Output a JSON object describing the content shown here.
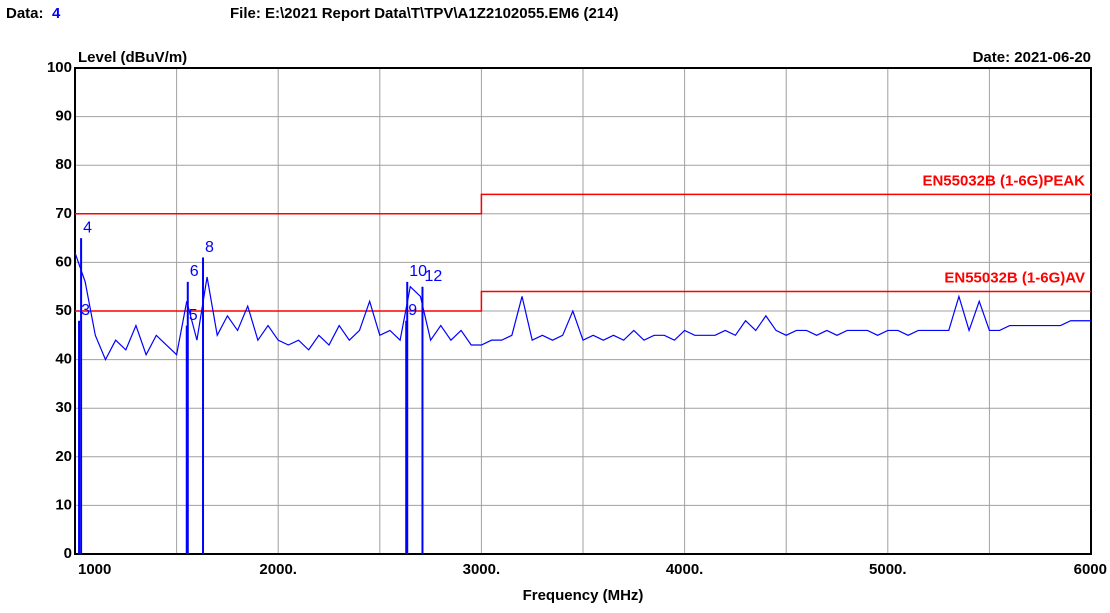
{
  "chart_data": {
    "type": "line",
    "data_label": "Data:",
    "data_number": "4",
    "file": "File: E:\\2021 Report Data\\T\\TPV\\A1Z2102055.EM6  (214)",
    "date": "Date: 2021-06-20",
    "ylabel": "Level (dBuV/m)",
    "xlabel": "Frequency (MHz)",
    "xlim": [
      1000,
      6000
    ],
    "ylim": [
      0,
      100
    ],
    "xticks": [
      {
        "value": 1000,
        "label": "1000"
      },
      {
        "value": 2000,
        "label": "2000."
      },
      {
        "value": 3000,
        "label": "3000."
      },
      {
        "value": 4000,
        "label": "4000."
      },
      {
        "value": 5000,
        "label": "5000."
      },
      {
        "value": 6000,
        "label": "6000"
      }
    ],
    "xgrid": [
      1500,
      2500,
      3500,
      4500,
      5500
    ],
    "yticks": [
      0,
      10,
      20,
      30,
      40,
      50,
      60,
      70,
      80,
      90,
      100
    ],
    "grid": true,
    "series": [
      {
        "name": "Data",
        "color": "#0000ff",
        "x": [
          1000,
          1050,
          1100,
          1150,
          1200,
          1250,
          1300,
          1350,
          1400,
          1450,
          1500,
          1550,
          1600,
          1650,
          1700,
          1750,
          1800,
          1850,
          1900,
          1950,
          2000,
          2050,
          2100,
          2150,
          2200,
          2250,
          2300,
          2350,
          2400,
          2450,
          2500,
          2550,
          2600,
          2650,
          2700,
          2750,
          2800,
          2850,
          2900,
          2950,
          3000,
          3050,
          3100,
          3150,
          3200,
          3250,
          3300,
          3350,
          3400,
          3450,
          3500,
          3550,
          3600,
          3650,
          3700,
          3750,
          3800,
          3850,
          3900,
          3950,
          4000,
          4050,
          4100,
          4150,
          4200,
          4250,
          4300,
          4350,
          4400,
          4450,
          4500,
          4550,
          4600,
          4650,
          4700,
          4750,
          4800,
          4850,
          4900,
          4950,
          5000,
          5050,
          5100,
          5150,
          5200,
          5250,
          5300,
          5350,
          5400,
          5450,
          5500,
          5550,
          5600,
          5650,
          5700,
          5750,
          5800,
          5850,
          5900,
          5950,
          6000
        ],
        "values": [
          62,
          56,
          45,
          40,
          44,
          42,
          47,
          41,
          45,
          43,
          41,
          52,
          44,
          57,
          45,
          49,
          46,
          51,
          44,
          47,
          44,
          43,
          44,
          42,
          45,
          43,
          47,
          44,
          46,
          52,
          45,
          46,
          44,
          55,
          53,
          44,
          47,
          44,
          46,
          43,
          43,
          44,
          44,
          45,
          53,
          44,
          45,
          44,
          45,
          50,
          44,
          45,
          44,
          45,
          44,
          46,
          44,
          45,
          45,
          44,
          46,
          45,
          45,
          45,
          46,
          45,
          48,
          46,
          49,
          46,
          45,
          46,
          46,
          45,
          46,
          45,
          46,
          46,
          46,
          45,
          46,
          46,
          45,
          46,
          46,
          46,
          46,
          53,
          46,
          52,
          46,
          46,
          47,
          47,
          47,
          47,
          47,
          47,
          48,
          48,
          48
        ]
      }
    ],
    "limits": [
      {
        "name": "EN55032B (1-6G)PEAK",
        "color": "#ff0000",
        "x": [
          1000,
          3000,
          3000,
          6000
        ],
        "values": [
          70,
          70,
          74,
          74
        ]
      },
      {
        "name": "EN55032B (1-6G)AV",
        "color": "#ff0000",
        "x": [
          1000,
          3000,
          3000,
          6000
        ],
        "values": [
          50,
          50,
          54,
          54
        ]
      }
    ],
    "markers": [
      {
        "label": "3",
        "x": 1020,
        "value": 48
      },
      {
        "label": "4",
        "x": 1030,
        "value": 65
      },
      {
        "label": "5",
        "x": 1550,
        "value": 47
      },
      {
        "label": "6",
        "x": 1555,
        "value": 56
      },
      {
        "label": "8",
        "x": 1630,
        "value": 61
      },
      {
        "label": "9",
        "x": 2630,
        "value": 48
      },
      {
        "label": "10",
        "x": 2635,
        "value": 56
      },
      {
        "label": "12",
        "x": 2710,
        "value": 55
      }
    ]
  }
}
